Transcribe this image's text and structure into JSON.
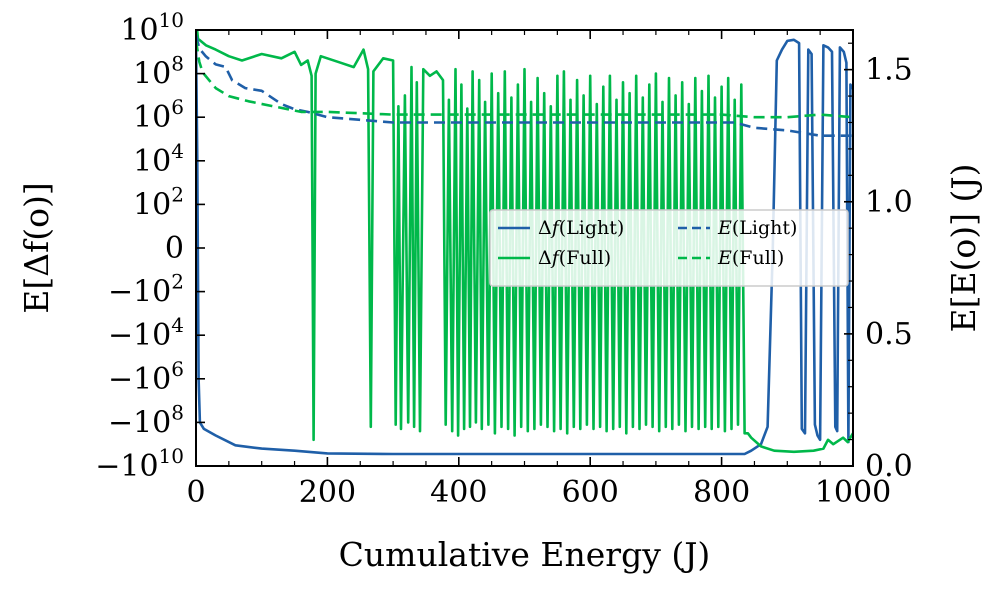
{
  "chart_data": {
    "type": "line",
    "title": "",
    "xlabel": "Cumulative Energy (J)",
    "ylabel_left": "E[Δf(o)]",
    "ylabel_right": "E[E(o)] (J)",
    "xlim": [
      0,
      1000
    ],
    "ylim_left_symlog_exponent": [
      -10,
      10
    ],
    "ylim_right": [
      0,
      1.65
    ],
    "grid": false,
    "legend_position": "center-right",
    "x_ticks": [
      {
        "value": 0,
        "label": "0"
      },
      {
        "value": 200,
        "label": "200"
      },
      {
        "value": 400,
        "label": "400"
      },
      {
        "value": 600,
        "label": "600"
      },
      {
        "value": 800,
        "label": "800"
      },
      {
        "value": 1000,
        "label": "1000"
      }
    ],
    "y_left_ticks": [
      {
        "value": 10,
        "base": "10",
        "exp": "10"
      },
      {
        "value": 8,
        "base": "10",
        "exp": "8"
      },
      {
        "value": 6,
        "base": "10",
        "exp": "6"
      },
      {
        "value": 4,
        "base": "10",
        "exp": "4"
      },
      {
        "value": 2,
        "base": "10",
        "exp": "2"
      },
      {
        "value": 0,
        "base": "0",
        "exp": ""
      },
      {
        "value": -2,
        "base": "−10",
        "exp": "2"
      },
      {
        "value": -4,
        "base": "−10",
        "exp": "4"
      },
      {
        "value": -6,
        "base": "−10",
        "exp": "6"
      },
      {
        "value": -8,
        "base": "−10",
        "exp": "8"
      },
      {
        "value": -10,
        "base": "−10",
        "exp": "10"
      }
    ],
    "y_right_ticks": [
      {
        "value": 0.0,
        "label": "0.0"
      },
      {
        "value": 0.5,
        "label": "0.5"
      },
      {
        "value": 1.0,
        "label": "1.0"
      },
      {
        "value": 1.5,
        "label": "1.5"
      }
    ],
    "series": [
      {
        "name": "Δf(Light)",
        "axis": "left",
        "style": "solid",
        "color": "#1f5fa8",
        "points": [
          [
            0,
            9.5
          ],
          [
            2,
            4
          ],
          [
            4,
            -6
          ],
          [
            6,
            -8
          ],
          [
            12,
            -8.3
          ],
          [
            30,
            -8.6
          ],
          [
            60,
            -9.05
          ],
          [
            100,
            -9.2
          ],
          [
            150,
            -9.3
          ],
          [
            200,
            -9.42
          ],
          [
            300,
            -9.45
          ],
          [
            500,
            -9.45
          ],
          [
            700,
            -9.45
          ],
          [
            835,
            -9.45
          ],
          [
            845,
            -9.3
          ],
          [
            860,
            -9.0
          ],
          [
            870,
            -8.2
          ],
          [
            878,
            0
          ],
          [
            884,
            8.6
          ],
          [
            892,
            9.1
          ],
          [
            900,
            9.5
          ],
          [
            910,
            9.55
          ],
          [
            918,
            9.4
          ],
          [
            922,
            -8.3
          ],
          [
            927,
            -8.5
          ],
          [
            932,
            9.1
          ],
          [
            937,
            8.9
          ],
          [
            942,
            -8.1
          ],
          [
            946,
            -8.6
          ],
          [
            950,
            -8.8
          ],
          [
            955,
            9.3
          ],
          [
            962,
            9.2
          ],
          [
            968,
            9.0
          ],
          [
            973,
            -8.2
          ],
          [
            976,
            -8.4
          ],
          [
            980,
            9.2
          ],
          [
            986,
            9.0
          ],
          [
            990,
            8.5
          ],
          [
            993,
            -8.9
          ],
          [
            996,
            7.5
          ],
          [
            1000,
            7.3
          ]
        ]
      },
      {
        "name": "Δf(Full)",
        "axis": "left",
        "style": "solid",
        "color": "#00b84a",
        "points": [
          [
            0,
            10.5
          ],
          [
            3,
            9.6
          ],
          [
            15,
            9.3
          ],
          [
            30,
            9.1
          ],
          [
            50,
            8.8
          ],
          [
            70,
            8.6
          ],
          [
            100,
            8.9
          ],
          [
            130,
            8.7
          ],
          [
            150,
            9.0
          ],
          [
            160,
            8.4
          ],
          [
            170,
            8.6
          ],
          [
            176,
            7.9
          ],
          [
            179,
            -8.8
          ],
          [
            182,
            8.0
          ],
          [
            190,
            8.8
          ],
          [
            220,
            8.5
          ],
          [
            240,
            8.3
          ],
          [
            255,
            9.1
          ],
          [
            262,
            8.2
          ],
          [
            266,
            -8.2
          ],
          [
            270,
            8.1
          ],
          [
            285,
            8.7
          ],
          [
            300,
            8.6
          ],
          [
            304,
            -8.1
          ],
          [
            308,
            6.5
          ],
          [
            312,
            -8.3
          ],
          [
            318,
            7.0
          ],
          [
            323,
            -8.0
          ],
          [
            328,
            8.3
          ],
          [
            332,
            -8.2
          ],
          [
            336,
            7.6
          ],
          [
            341,
            -8.4
          ],
          [
            346,
            8.2
          ],
          [
            356,
            7.9
          ],
          [
            366,
            8.1
          ],
          [
            376,
            7.7
          ],
          [
            380,
            -8.1
          ],
          [
            385,
            6.8
          ],
          [
            390,
            -8.4
          ],
          [
            395,
            8.2
          ],
          [
            399,
            -8.6
          ],
          [
            404,
            7.5
          ],
          [
            408,
            -8.3
          ],
          [
            413,
            6.4
          ],
          [
            417,
            -8.2
          ],
          [
            421,
            8.1
          ],
          [
            426,
            -8.0
          ],
          [
            431,
            7.7
          ],
          [
            435,
            -8.3
          ],
          [
            440,
            6.7
          ],
          [
            445,
            -8.1
          ],
          [
            450,
            8.0
          ],
          [
            455,
            -8.5
          ],
          [
            460,
            7.1
          ],
          [
            465,
            -8.2
          ],
          [
            470,
            8.1
          ],
          [
            475,
            -8.3
          ],
          [
            480,
            6.9
          ],
          [
            485,
            -8.6
          ],
          [
            490,
            7.5
          ],
          [
            495,
            -8.2
          ],
          [
            500,
            8.2
          ],
          [
            505,
            -8.4
          ],
          [
            510,
            6.7
          ],
          [
            515,
            -8.3
          ],
          [
            520,
            7.8
          ],
          [
            525,
            -8.1
          ],
          [
            530,
            7.1
          ],
          [
            535,
            -8.2
          ],
          [
            540,
            6.5
          ],
          [
            545,
            -8.4
          ],
          [
            550,
            7.9
          ],
          [
            555,
            -8.3
          ],
          [
            560,
            8.1
          ],
          [
            565,
            -8.5
          ],
          [
            570,
            6.8
          ],
          [
            575,
            -8.2
          ],
          [
            580,
            7.7
          ],
          [
            585,
            -8.3
          ],
          [
            590,
            7.0
          ],
          [
            595,
            -8.1
          ],
          [
            600,
            7.9
          ],
          [
            605,
            -8.3
          ],
          [
            610,
            6.6
          ],
          [
            615,
            -8.2
          ],
          [
            620,
            7.4
          ],
          [
            625,
            -8.4
          ],
          [
            630,
            7.9
          ],
          [
            635,
            -8.3
          ],
          [
            640,
            6.8
          ],
          [
            645,
            -8.2
          ],
          [
            650,
            7.6
          ],
          [
            655,
            -8.5
          ],
          [
            660,
            7.1
          ],
          [
            665,
            -8.2
          ],
          [
            670,
            7.9
          ],
          [
            675,
            -8.3
          ],
          [
            680,
            6.9
          ],
          [
            685,
            -8.1
          ],
          [
            690,
            7.5
          ],
          [
            695,
            -8.2
          ],
          [
            700,
            8.0
          ],
          [
            705,
            -8.4
          ],
          [
            710,
            6.7
          ],
          [
            715,
            -8.2
          ],
          [
            720,
            7.8
          ],
          [
            725,
            -8.3
          ],
          [
            730,
            7.0
          ],
          [
            735,
            -8.1
          ],
          [
            740,
            7.6
          ],
          [
            745,
            -8.4
          ],
          [
            750,
            6.6
          ],
          [
            755,
            -8.2
          ],
          [
            760,
            7.8
          ],
          [
            765,
            -8.3
          ],
          [
            770,
            7.2
          ],
          [
            775,
            -8.2
          ],
          [
            780,
            7.9
          ],
          [
            785,
            -8.3
          ],
          [
            790,
            6.9
          ],
          [
            795,
            -8.2
          ],
          [
            800,
            7.4
          ],
          [
            805,
            -8.4
          ],
          [
            810,
            7.8
          ],
          [
            815,
            -8.3
          ],
          [
            820,
            6.8
          ],
          [
            825,
            -8.1
          ],
          [
            830,
            7.5
          ],
          [
            835,
            -8.5
          ],
          [
            840,
            -8.5
          ],
          [
            845,
            -8.7
          ],
          [
            860,
            -9.1
          ],
          [
            880,
            -9.3
          ],
          [
            910,
            -9.35
          ],
          [
            940,
            -9.3
          ],
          [
            955,
            -9.2
          ],
          [
            962,
            -8.8
          ],
          [
            970,
            -9.0
          ],
          [
            985,
            -8.7
          ],
          [
            992,
            -8.9
          ],
          [
            1000,
            -8.5
          ]
        ]
      },
      {
        "name": "E(Light)",
        "axis": "right",
        "style": "dashed",
        "color": "#1f5fa8",
        "points": [
          [
            0,
            1.63
          ],
          [
            5,
            1.58
          ],
          [
            15,
            1.55
          ],
          [
            20,
            1.54
          ],
          [
            30,
            1.52
          ],
          [
            45,
            1.51
          ],
          [
            55,
            1.46
          ],
          [
            75,
            1.43
          ],
          [
            100,
            1.42
          ],
          [
            130,
            1.37
          ],
          [
            150,
            1.35
          ],
          [
            170,
            1.34
          ],
          [
            200,
            1.32
          ],
          [
            250,
            1.31
          ],
          [
            300,
            1.3
          ],
          [
            400,
            1.3
          ],
          [
            500,
            1.3
          ],
          [
            600,
            1.3
          ],
          [
            700,
            1.3
          ],
          [
            820,
            1.3
          ],
          [
            850,
            1.28
          ],
          [
            900,
            1.27
          ],
          [
            950,
            1.25
          ],
          [
            1000,
            1.25
          ]
        ]
      },
      {
        "name": "E(Full)",
        "axis": "right",
        "style": "dashed",
        "color": "#00b84a",
        "points": [
          [
            0,
            1.61
          ],
          [
            5,
            1.53
          ],
          [
            10,
            1.49
          ],
          [
            20,
            1.46
          ],
          [
            30,
            1.43
          ],
          [
            50,
            1.4
          ],
          [
            80,
            1.38
          ],
          [
            120,
            1.36
          ],
          [
            160,
            1.34
          ],
          [
            200,
            1.34
          ],
          [
            300,
            1.33
          ],
          [
            400,
            1.33
          ],
          [
            500,
            1.33
          ],
          [
            600,
            1.33
          ],
          [
            700,
            1.33
          ],
          [
            800,
            1.33
          ],
          [
            850,
            1.32
          ],
          [
            900,
            1.32
          ],
          [
            950,
            1.33
          ],
          [
            1000,
            1.32
          ]
        ]
      }
    ],
    "legend": [
      {
        "prefix": "Δ",
        "var": "f",
        "label": "(Light)",
        "style": "solid",
        "color": "#1f5fa8"
      },
      {
        "prefix": "",
        "var": "E",
        "label": "(Light)",
        "style": "dashed",
        "color": "#1f5fa8"
      },
      {
        "prefix": "Δ",
        "var": "f",
        "label": "(Full)",
        "style": "solid",
        "color": "#00b84a"
      },
      {
        "prefix": "",
        "var": "E",
        "label": "(Full)",
        "style": "dashed",
        "color": "#00b84a"
      }
    ]
  }
}
